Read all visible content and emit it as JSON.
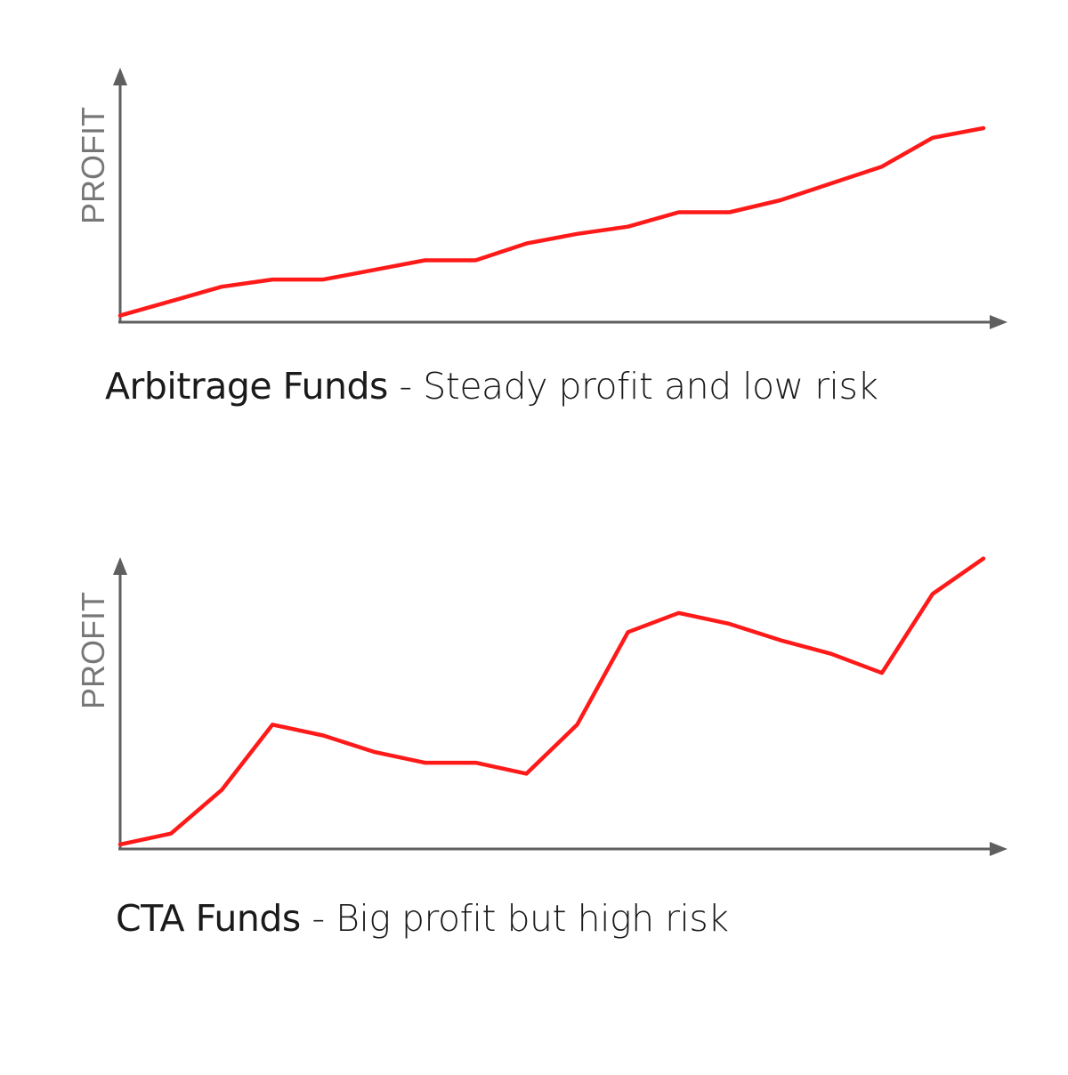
{
  "chart_data": [
    {
      "type": "line",
      "title": "",
      "xlabel": "",
      "ylabel": "PROFIT",
      "caption": {
        "name": "Arbitrage Funds",
        "description": " - Steady profit and low risk"
      },
      "x": [
        0,
        1,
        2,
        3,
        4,
        5,
        6,
        7,
        8,
        9,
        10,
        11,
        12,
        13,
        14,
        15,
        16,
        17
      ],
      "ylim": [
        0,
        100
      ],
      "series": [
        {
          "color": "#ff1a1a",
          "values": [
            2,
            8,
            14,
            17,
            17,
            21,
            25,
            25,
            32,
            36,
            39,
            45,
            45,
            50,
            57,
            64,
            76,
            80
          ]
        }
      ],
      "grid": false,
      "legend": "none"
    },
    {
      "type": "line",
      "title": "",
      "xlabel": "",
      "ylabel": "PROFIT",
      "caption": {
        "name": "CTA Funds",
        "description": " - Big profit but high risk"
      },
      "x": [
        0,
        1,
        2,
        3,
        4,
        5,
        6,
        7,
        8,
        9,
        10,
        11,
        12,
        13,
        14,
        15,
        16,
        17
      ],
      "ylim": [
        0,
        100
      ],
      "series": [
        {
          "color": "#ff1a1a",
          "values": [
            1,
            5,
            21,
            45,
            41,
            35,
            31,
            31,
            27,
            45,
            79,
            86,
            82,
            76,
            71,
            64,
            93,
            106
          ]
        }
      ],
      "grid": false,
      "legend": "none"
    }
  ]
}
